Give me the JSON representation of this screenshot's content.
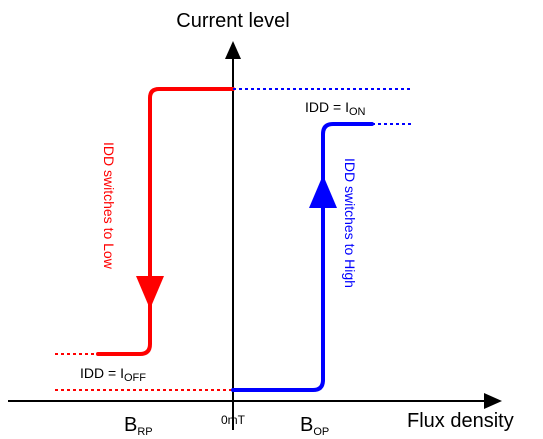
{
  "title": "Current level",
  "x_axis_label": "Flux density",
  "origin_label": "0mT",
  "brp": {
    "main": "B",
    "sub": "RP"
  },
  "bop": {
    "main": "B",
    "sub": "OP"
  },
  "idd_on": {
    "prefix": "IDD = I",
    "sub": "ON"
  },
  "idd_off": {
    "prefix": "IDD = I",
    "sub": "OFF"
  },
  "red_caption": "IDD switches to Low",
  "blue_caption": "IDD switches to High",
  "colors": {
    "red": "#ff0000",
    "blue": "#0000ff",
    "axis": "#000000"
  }
}
